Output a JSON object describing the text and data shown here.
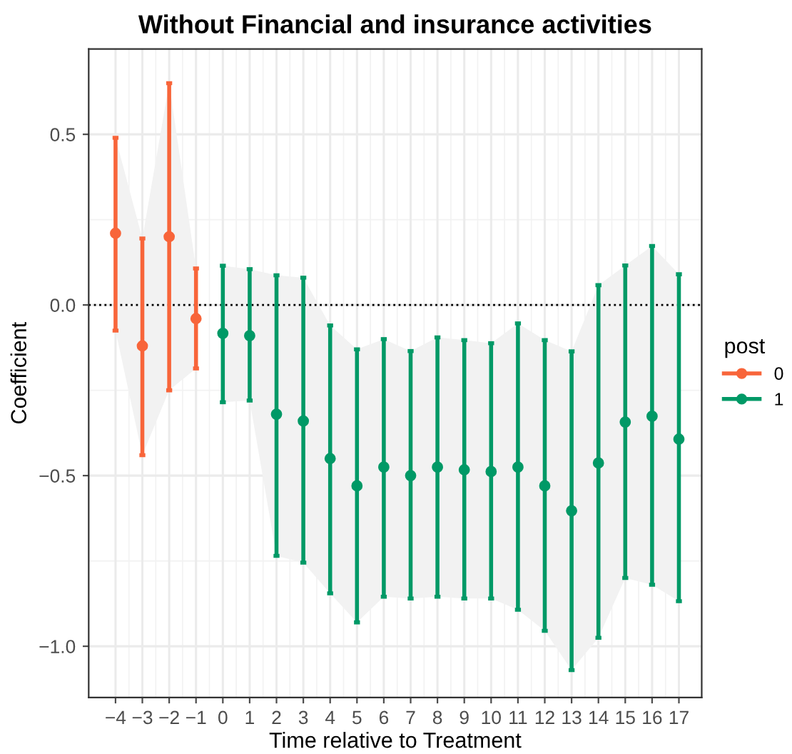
{
  "chart_data": {
    "type": "scatter",
    "title": "Without Financial and insurance activities",
    "xlabel": "Time relative to Treatment",
    "ylabel": "Coefficient",
    "legend_title": "post",
    "legend": "right",
    "grid": true,
    "marker": "circle",
    "xlim": [
      -5,
      17.85
    ],
    "ylim": [
      -1.15,
      0.75
    ],
    "xticks": [
      {
        "value": -4,
        "label": "−4"
      },
      {
        "value": -3,
        "label": "−3"
      },
      {
        "value": -2,
        "label": "−2"
      },
      {
        "value": -1,
        "label": "−1"
      },
      0,
      1,
      2,
      3,
      4,
      5,
      6,
      7,
      8,
      9,
      10,
      11,
      12,
      13,
      14,
      15,
      16,
      17
    ],
    "yticks": [
      {
        "value": -1,
        "label": "−1.0"
      },
      {
        "value": -0.5,
        "label": "−0.5"
      },
      {
        "value": 0,
        "label": "0.0"
      },
      {
        "value": 0.5,
        "label": "0.5"
      }
    ],
    "ref_lines": [
      {
        "axis": "y",
        "value": 0,
        "line_style": "dotted",
        "color": "#000000"
      }
    ],
    "series": [
      {
        "name": "0",
        "color": "#f8653a",
        "x": [
          -4,
          -3,
          -2,
          -1
        ],
        "values": [
          0.21,
          -0.12,
          0.2,
          -0.04
        ],
        "lower": [
          -0.075,
          -0.44,
          -0.25,
          -0.186
        ],
        "upper": [
          0.49,
          0.195,
          0.65,
          0.107
        ],
        "errors": [
          [
            -0.075,
            0.49
          ],
          [
            -0.44,
            0.195
          ],
          [
            -0.25,
            0.65
          ],
          [
            -0.186,
            0.107
          ]
        ]
      },
      {
        "name": "1",
        "color": "#009966",
        "x": [
          0,
          1,
          2,
          3,
          4,
          5,
          6,
          7,
          8,
          9,
          10,
          11,
          12,
          13,
          14,
          15,
          16,
          17
        ],
        "values": [
          -0.083,
          -0.09,
          -0.32,
          -0.34,
          -0.45,
          -0.53,
          -0.475,
          -0.5,
          -0.475,
          -0.483,
          -0.488,
          -0.475,
          -0.53,
          -0.603,
          -0.463,
          -0.343,
          -0.326,
          -0.393
        ],
        "lower": [
          -0.285,
          -0.28,
          -0.735,
          -0.755,
          -0.845,
          -0.93,
          -0.855,
          -0.86,
          -0.855,
          -0.86,
          -0.86,
          -0.893,
          -0.955,
          -1.07,
          -0.975,
          -0.8,
          -0.82,
          -0.868
        ],
        "upper": [
          0.115,
          0.105,
          0.087,
          0.08,
          -0.06,
          -0.13,
          -0.1,
          -0.135,
          -0.095,
          -0.103,
          -0.112,
          -0.054,
          -0.103,
          -0.136,
          0.058,
          0.116,
          0.173,
          0.09
        ],
        "errors": [
          [
            -0.285,
            0.115
          ],
          [
            -0.28,
            0.105
          ],
          [
            -0.735,
            0.087
          ],
          [
            -0.755,
            0.08
          ],
          [
            -0.845,
            -0.06
          ],
          [
            -0.93,
            -0.13
          ],
          [
            -0.855,
            -0.1
          ],
          [
            -0.86,
            -0.135
          ],
          [
            -0.855,
            -0.095
          ],
          [
            -0.86,
            -0.103
          ],
          [
            -0.86,
            -0.112
          ],
          [
            -0.893,
            -0.054
          ],
          [
            -0.955,
            -0.103
          ],
          [
            -1.07,
            -0.136
          ],
          [
            -0.975,
            0.058
          ],
          [
            -0.8,
            0.116
          ],
          [
            -0.82,
            0.173
          ],
          [
            -0.868,
            0.09
          ]
        ]
      }
    ]
  }
}
